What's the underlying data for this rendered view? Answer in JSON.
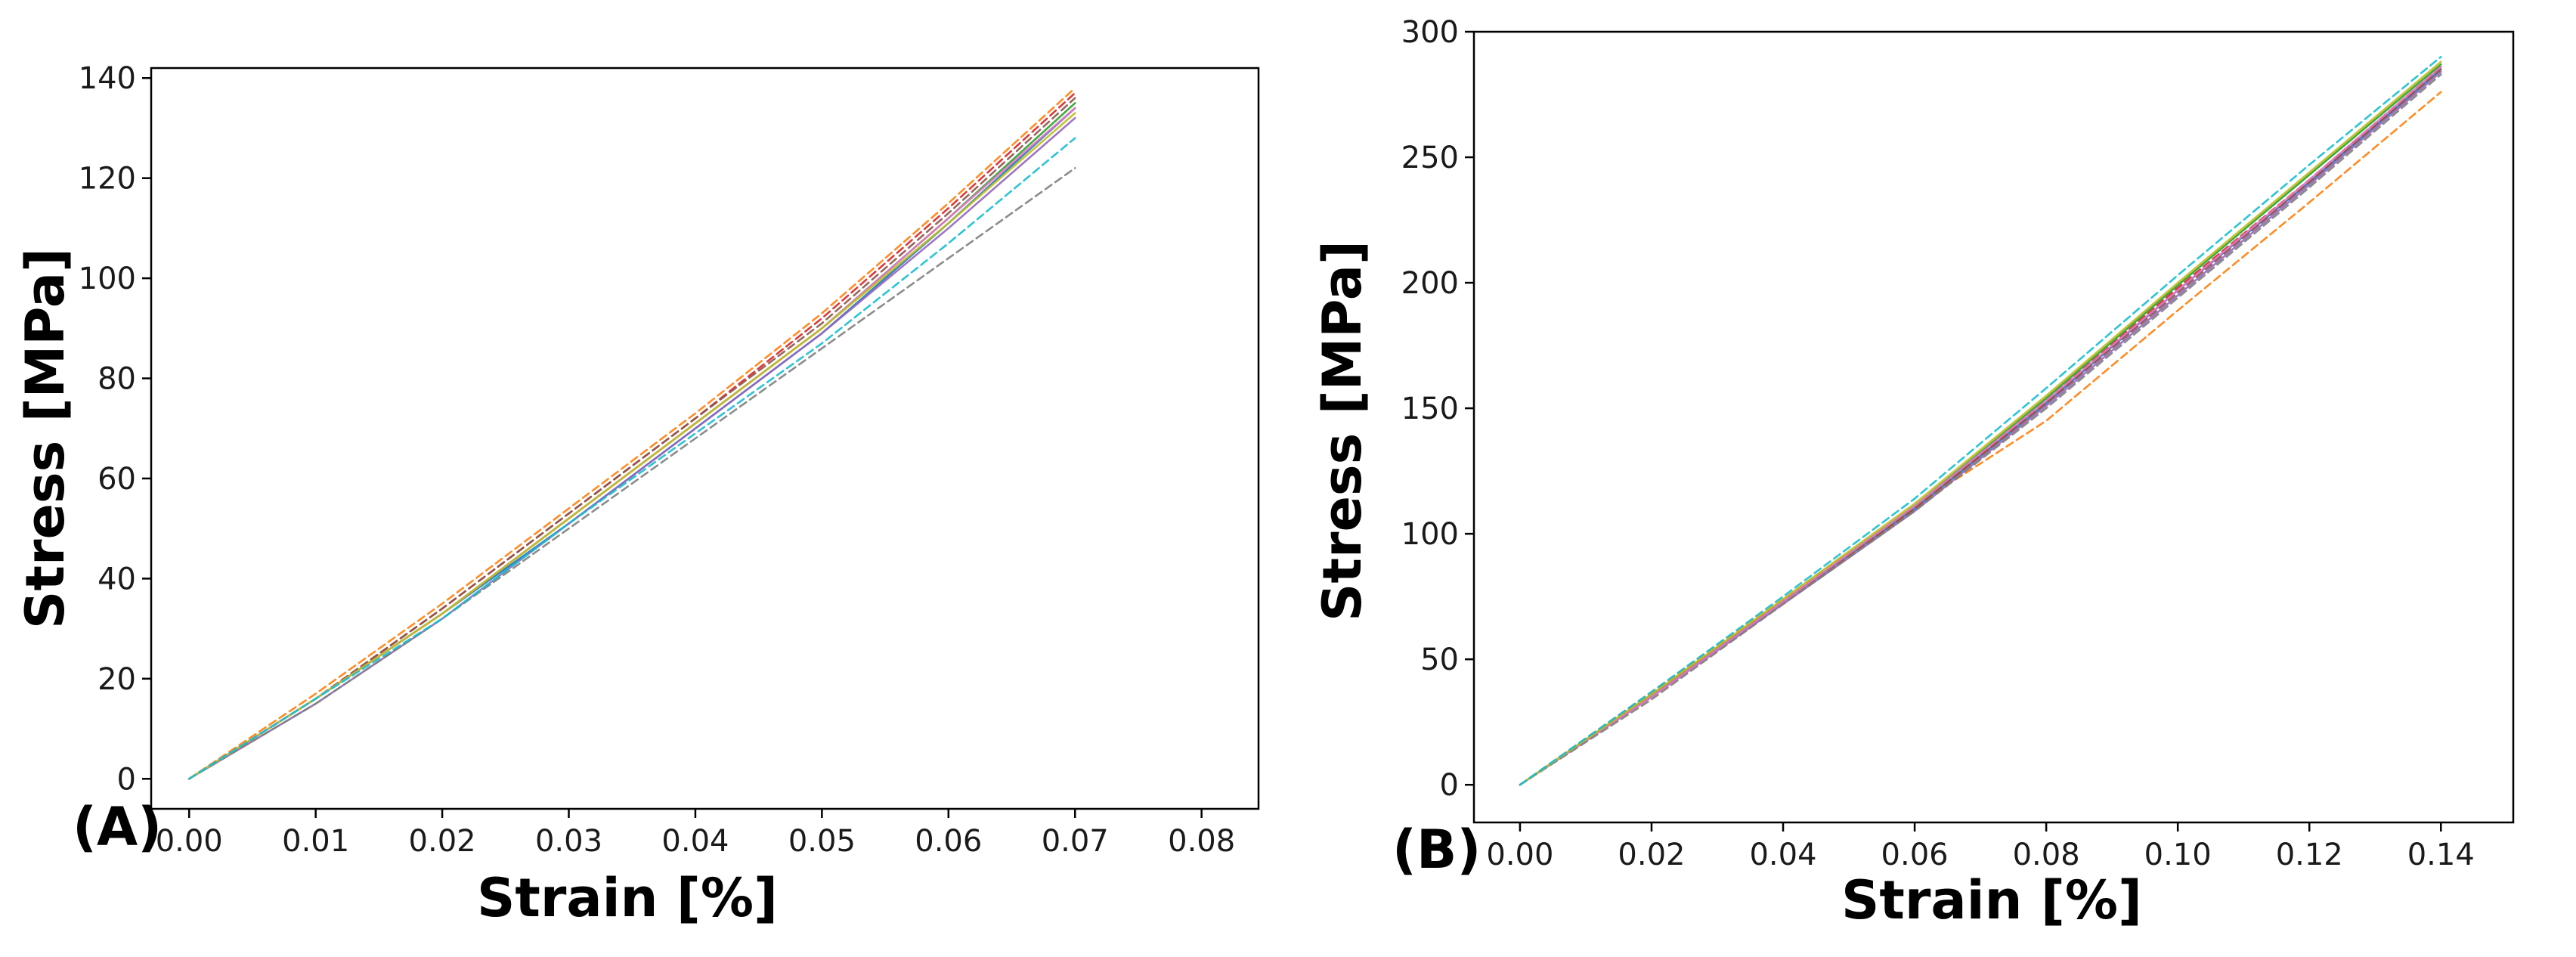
{
  "chart_data": [
    {
      "type": "line",
      "panel_label": "(A)",
      "xlabel": "Strain [%]",
      "ylabel": "Stress [MPa]",
      "xlim": [
        -0.003,
        0.0845
      ],
      "ylim": [
        -6,
        142
      ],
      "xticks": [
        "0.00",
        "0.01",
        "0.02",
        "0.03",
        "0.04",
        "0.05",
        "0.06",
        "0.07",
        "0.08"
      ],
      "yticks": [
        "0",
        "20",
        "40",
        "60",
        "80",
        "100",
        "120",
        "140"
      ],
      "grid": false,
      "legend": "none",
      "x": [
        0.0,
        0.01,
        0.02,
        0.03,
        0.04,
        0.05,
        0.06,
        0.07
      ],
      "series": [
        {
          "color": "#1f77b4",
          "values": [
            0,
            16,
            33,
            51,
            70,
            89,
            111,
            134
          ]
        },
        {
          "color": "#ff7f0e",
          "values": [
            0,
            17,
            35,
            54,
            73,
            93,
            115,
            138
          ]
        },
        {
          "color": "#2ca02c",
          "values": [
            0,
            16,
            33,
            52,
            71,
            90,
            112,
            135
          ]
        },
        {
          "color": "#d62728",
          "values": [
            0,
            16,
            34,
            53,
            72,
            92,
            114,
            137
          ]
        },
        {
          "color": "#9467bd",
          "values": [
            0,
            15,
            32,
            51,
            70,
            89,
            110,
            132
          ]
        },
        {
          "color": "#8c564b",
          "values": [
            0,
            16,
            34,
            53,
            72,
            91,
            113,
            136
          ]
        },
        {
          "color": "#e377c2",
          "values": [
            0,
            16,
            33,
            52,
            71,
            90,
            112,
            134
          ]
        },
        {
          "color": "#7f7f7f",
          "values": [
            0,
            15,
            32,
            50,
            68,
            86,
            104,
            122
          ]
        },
        {
          "color": "#bcbd22",
          "values": [
            0,
            16,
            33,
            52,
            71,
            90,
            111,
            133
          ]
        },
        {
          "color": "#17becf",
          "values": [
            0,
            16,
            32,
            51,
            69,
            87,
            107,
            128
          ]
        }
      ]
    },
    {
      "type": "line",
      "panel_label": "(B)",
      "xlabel": "Strain [%]",
      "ylabel": "Stress [MPa]",
      "xlim": [
        -0.007,
        0.151
      ],
      "ylim": [
        -15,
        300
      ],
      "xticks": [
        "0.00",
        "0.02",
        "0.04",
        "0.06",
        "0.08",
        "0.10",
        "0.12",
        "0.14"
      ],
      "yticks": [
        "0",
        "50",
        "100",
        "150",
        "200",
        "250",
        "300"
      ],
      "grid": false,
      "legend": "none",
      "x": [
        0.0,
        0.02,
        0.04,
        0.06,
        0.08,
        0.1,
        0.12,
        0.14
      ],
      "series": [
        {
          "color": "#1f77b4",
          "values": [
            0,
            35,
            73,
            110,
            152,
            197,
            240,
            285
          ]
        },
        {
          "color": "#ff7f0e",
          "values": [
            0,
            37,
            74,
            111,
            145,
            189,
            232,
            276
          ]
        },
        {
          "color": "#2ca02c",
          "values": [
            0,
            36,
            73,
            111,
            154,
            199,
            243,
            287
          ]
        },
        {
          "color": "#d62728",
          "values": [
            0,
            35,
            72,
            110,
            153,
            198,
            241,
            286
          ]
        },
        {
          "color": "#9467bd",
          "values": [
            0,
            35,
            72,
            109,
            151,
            195,
            239,
            284
          ]
        },
        {
          "color": "#8c564b",
          "values": [
            0,
            36,
            73,
            110,
            152,
            196,
            240,
            285
          ]
        },
        {
          "color": "#e377c2",
          "values": [
            0,
            35,
            73,
            111,
            153,
            197,
            241,
            286
          ]
        },
        {
          "color": "#7f7f7f",
          "values": [
            0,
            34,
            72,
            109,
            150,
            194,
            238,
            283
          ]
        },
        {
          "color": "#bcbd22",
          "values": [
            0,
            36,
            74,
            112,
            155,
            200,
            244,
            288
          ]
        },
        {
          "color": "#17becf",
          "values": [
            0,
            37,
            75,
            114,
            158,
            203,
            247,
            290
          ]
        }
      ]
    }
  ]
}
